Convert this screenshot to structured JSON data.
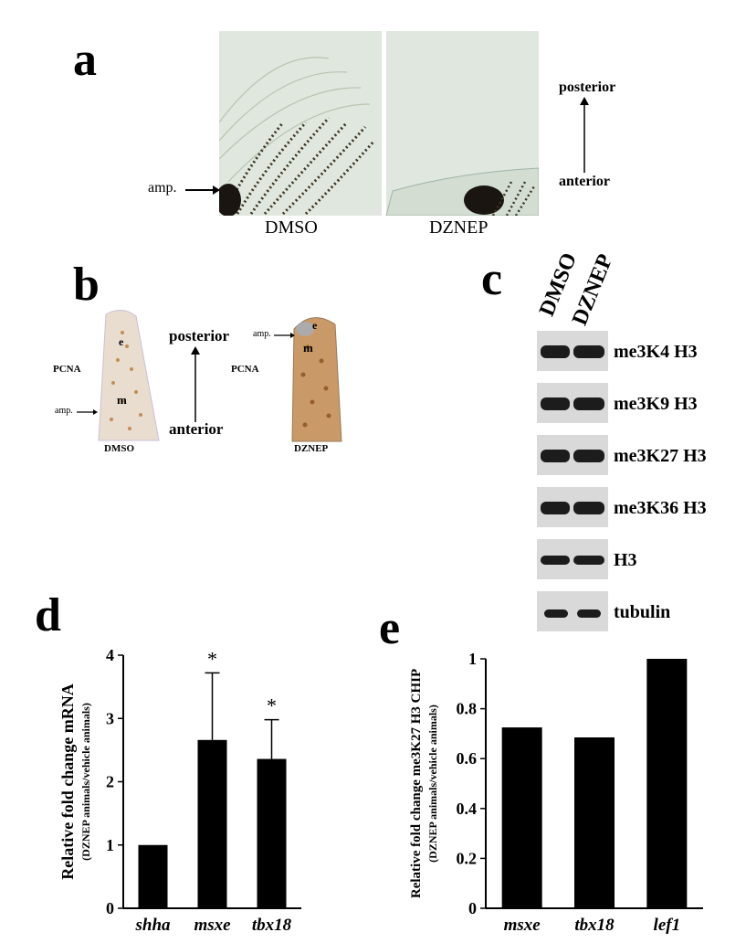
{
  "panels": {
    "a": {
      "letter": "a",
      "amp_label": "amp.",
      "left_caption": "DMSO",
      "right_caption": "DZNEP",
      "posterior": "posterior",
      "anterior": "anterior"
    },
    "b": {
      "letter": "b",
      "left_pcna": "PCNA",
      "right_pcna": "PCNA",
      "amp_left": "amp.",
      "amp_right": "amp.",
      "e_left": "e",
      "m_left": "m",
      "e_right": "e",
      "m_right": "m",
      "posterior": "posterior",
      "anterior": "anterior",
      "left_caption": "DMSO",
      "right_caption": "DZNEP"
    },
    "c": {
      "letter": "c",
      "col1": "DMSO",
      "col2": "DZNEP",
      "rows": [
        "me3K4 H3",
        "me3K9 H3",
        "me3K27 H3",
        "me3K36 H3",
        "H3",
        "tubulin"
      ]
    },
    "d": {
      "letter": "d"
    },
    "e": {
      "letter": "e"
    }
  },
  "chart_data": [
    {
      "type": "bar",
      "categories": [
        "shha",
        "msxe",
        "tbx18"
      ],
      "values": [
        1.0,
        2.66,
        2.36
      ],
      "error_upper": [
        0,
        1.06,
        0.62
      ],
      "significance": [
        "",
        "*",
        "*"
      ],
      "ylabel": "Relative fold change mRNA",
      "ylabel2": "(DZNEP animals/vehicle animals)",
      "ylim": [
        0,
        4
      ],
      "yticks": [
        "0",
        "1",
        "2",
        "3",
        "4"
      ],
      "grid": false
    },
    {
      "type": "bar",
      "categories": [
        "msxe",
        "tbx18",
        "lef1"
      ],
      "values": [
        0.725,
        0.685,
        1.0
      ],
      "ylabel": "Relative fold change  me3K27 H3 CHIP",
      "ylabel2": "(DZNEP animals/vehicle animals)",
      "ylim": [
        0,
        1
      ],
      "yticks": [
        "0",
        "0.2",
        "0.4",
        "0.6",
        "0.8",
        "1"
      ],
      "grid": false
    }
  ]
}
